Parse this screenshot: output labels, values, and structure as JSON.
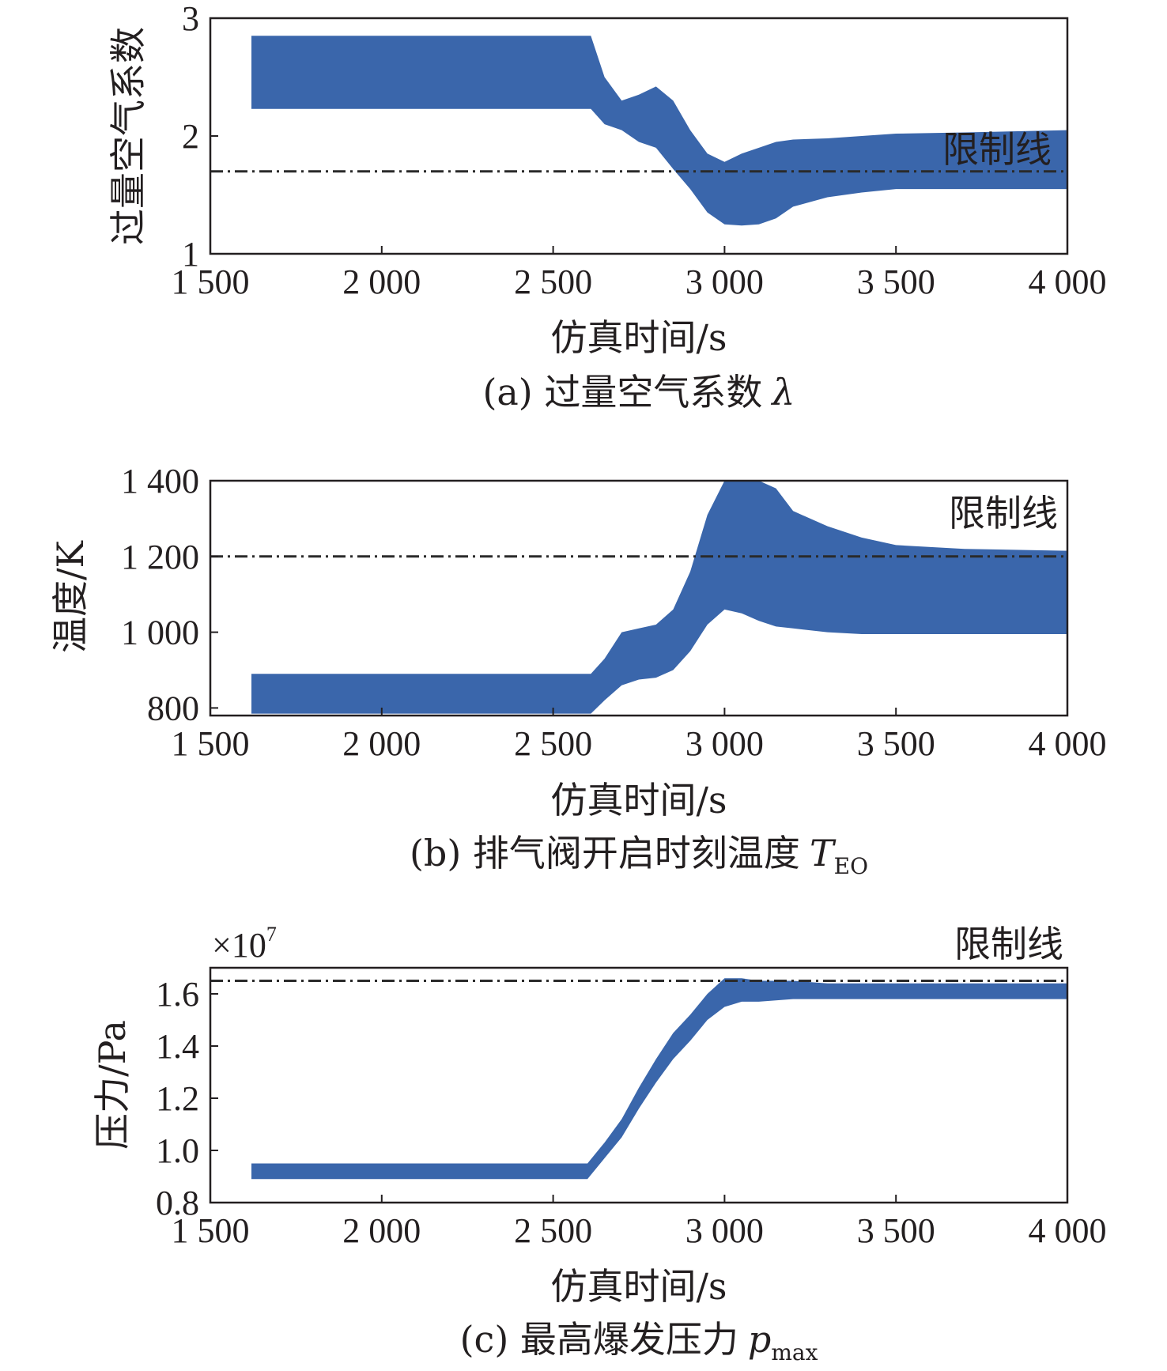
{
  "colors": {
    "series": "#3a66ab",
    "limit": "#2a2a2a",
    "axis": "#231f20"
  },
  "chart_data": [
    {
      "type": "area",
      "caption_prefix": "(a) 过量空气系数",
      "caption_symbol": "λ",
      "ylabel": "过量空气系数",
      "xlabel": "仿真时间/s",
      "xlim": [
        1500,
        4000
      ],
      "ylim": [
        1,
        3
      ],
      "xticks": [
        1500,
        2000,
        2500,
        3000,
        3500,
        4000
      ],
      "xtick_labels": [
        "1 500",
        "2 000",
        "2 500",
        "3 000",
        "3 500",
        "4 000"
      ],
      "yticks": [
        1,
        2,
        3
      ],
      "ytick_labels": [
        "1",
        "2",
        "3"
      ],
      "limit_line": {
        "value": 1.7,
        "label": "限制线"
      },
      "band": {
        "x": [
          1620,
          2000,
          2400,
          2610,
          2650,
          2700,
          2750,
          2800,
          2850,
          2900,
          2950,
          3000,
          3050,
          3100,
          3150,
          3200,
          3300,
          3400,
          3500,
          3700,
          4000
        ],
        "lower": [
          2.23,
          2.23,
          2.23,
          2.23,
          2.1,
          2.05,
          1.95,
          1.9,
          1.72,
          1.55,
          1.35,
          1.25,
          1.24,
          1.25,
          1.3,
          1.4,
          1.48,
          1.52,
          1.55,
          1.55,
          1.55
        ],
        "upper": [
          2.85,
          2.85,
          2.85,
          2.85,
          2.5,
          2.3,
          2.35,
          2.42,
          2.3,
          2.05,
          1.85,
          1.78,
          1.85,
          1.9,
          1.95,
          1.97,
          1.98,
          2.0,
          2.02,
          2.03,
          2.05
        ]
      }
    },
    {
      "type": "area",
      "caption_prefix": "(b) 排气阀开启时刻温度",
      "caption_symbol": "T",
      "caption_subscript": "EO",
      "ylabel": "温度/K",
      "xlabel": "仿真时间/s",
      "xlim": [
        1500,
        4000
      ],
      "ylim": [
        780,
        1400
      ],
      "xticks": [
        1500,
        2000,
        2500,
        3000,
        3500,
        4000
      ],
      "xtick_labels": [
        "1 500",
        "2 000",
        "2 500",
        "3 000",
        "3 500",
        "4 000"
      ],
      "yticks": [
        800,
        1000,
        1200,
        1400
      ],
      "ytick_labels": [
        "800",
        "1 000",
        "1 200",
        "1 400"
      ],
      "limit_line": {
        "value": 1200,
        "label": "限制线"
      },
      "band": {
        "x": [
          1620,
          2000,
          2400,
          2610,
          2650,
          2700,
          2750,
          2800,
          2850,
          2900,
          2950,
          3000,
          3050,
          3100,
          3150,
          3200,
          3300,
          3400,
          3500,
          3700,
          4000
        ],
        "lower": [
          785,
          785,
          785,
          785,
          820,
          860,
          875,
          880,
          900,
          950,
          1020,
          1060,
          1050,
          1030,
          1015,
          1010,
          1000,
          995,
          995,
          995,
          995
        ],
        "upper": [
          890,
          890,
          890,
          890,
          930,
          1000,
          1010,
          1020,
          1060,
          1160,
          1310,
          1400,
          1400,
          1400,
          1380,
          1320,
          1280,
          1250,
          1230,
          1220,
          1215
        ]
      }
    },
    {
      "type": "area",
      "caption_prefix": "(c) 最高爆发压力",
      "caption_symbol": "p",
      "caption_subscript": "max",
      "ylabel": "压力/Pa",
      "xlabel": "仿真时间/s",
      "y_multiplier": "×10",
      "y_multiplier_exp": "7",
      "xlim": [
        1500,
        4000
      ],
      "ylim": [
        0.8,
        1.7
      ],
      "xticks": [
        1500,
        2000,
        2500,
        3000,
        3500,
        4000
      ],
      "xtick_labels": [
        "1 500",
        "2 000",
        "2 500",
        "3 000",
        "3 500",
        "4 000"
      ],
      "yticks": [
        0.8,
        1.0,
        1.2,
        1.4,
        1.6
      ],
      "ytick_labels": [
        "0.8",
        "1.0",
        "1.2",
        "1.4",
        "1.6"
      ],
      "limit_line": {
        "value": 1.65,
        "label": "限制线"
      },
      "band": {
        "x": [
          1620,
          2000,
          2400,
          2600,
          2650,
          2700,
          2750,
          2800,
          2850,
          2900,
          2950,
          3000,
          3050,
          3100,
          3200,
          3300,
          3500,
          3700,
          4000
        ],
        "lower": [
          0.89,
          0.89,
          0.89,
          0.89,
          0.97,
          1.05,
          1.16,
          1.26,
          1.35,
          1.42,
          1.5,
          1.55,
          1.57,
          1.57,
          1.58,
          1.58,
          1.58,
          1.58,
          1.58
        ],
        "upper": [
          0.95,
          0.95,
          0.95,
          0.95,
          1.03,
          1.12,
          1.24,
          1.35,
          1.45,
          1.52,
          1.6,
          1.66,
          1.66,
          1.65,
          1.65,
          1.64,
          1.64,
          1.64,
          1.64
        ]
      }
    }
  ]
}
